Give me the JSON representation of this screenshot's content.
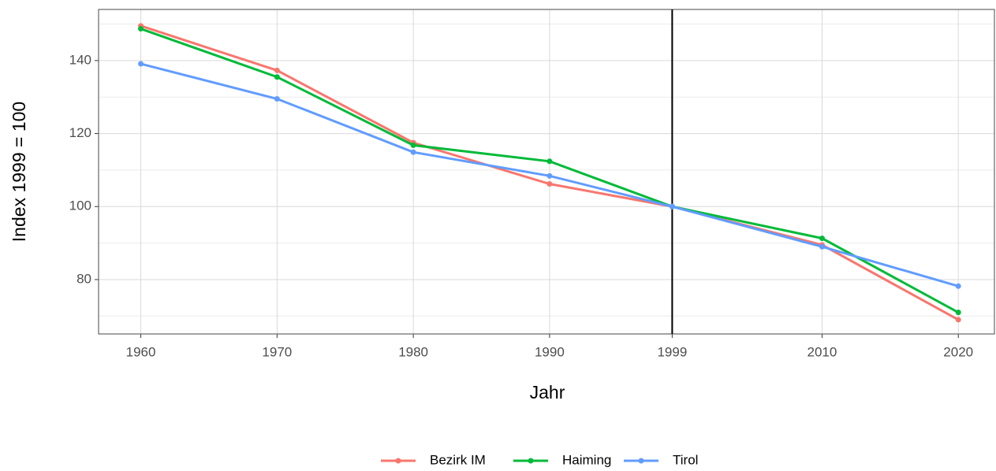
{
  "chart_data": {
    "type": "line",
    "x_label": "Jahr",
    "y_label": "Index 1999 = 100",
    "x": [
      1960,
      1970,
      1980,
      1990,
      1999,
      2010,
      2020
    ],
    "series": [
      {
        "name": "Bezirk IM",
        "color": "#f8766d",
        "values": [
          149.5,
          137.3,
          117.5,
          106.2,
          100,
          89.5,
          69
        ]
      },
      {
        "name": "Haiming",
        "color": "#00ba38",
        "values": [
          148.7,
          135.5,
          116.8,
          112.4,
          100,
          91.3,
          71
        ]
      },
      {
        "name": "Tirol",
        "color": "#619cff",
        "values": [
          139.1,
          129.5,
          114.9,
          108.4,
          100,
          89,
          78.2
        ]
      }
    ],
    "xlim": [
      1956.9,
      2022.65
    ],
    "xticks": [
      1960,
      1970,
      1980,
      1990,
      1999,
      2010,
      2020
    ],
    "ylim": [
      65.1,
      154
    ],
    "yticks": [
      80,
      100,
      120,
      140
    ],
    "yminor": [
      70,
      90,
      110,
      130,
      150
    ],
    "vline": 1999,
    "grid": true,
    "legend": "bottom"
  }
}
